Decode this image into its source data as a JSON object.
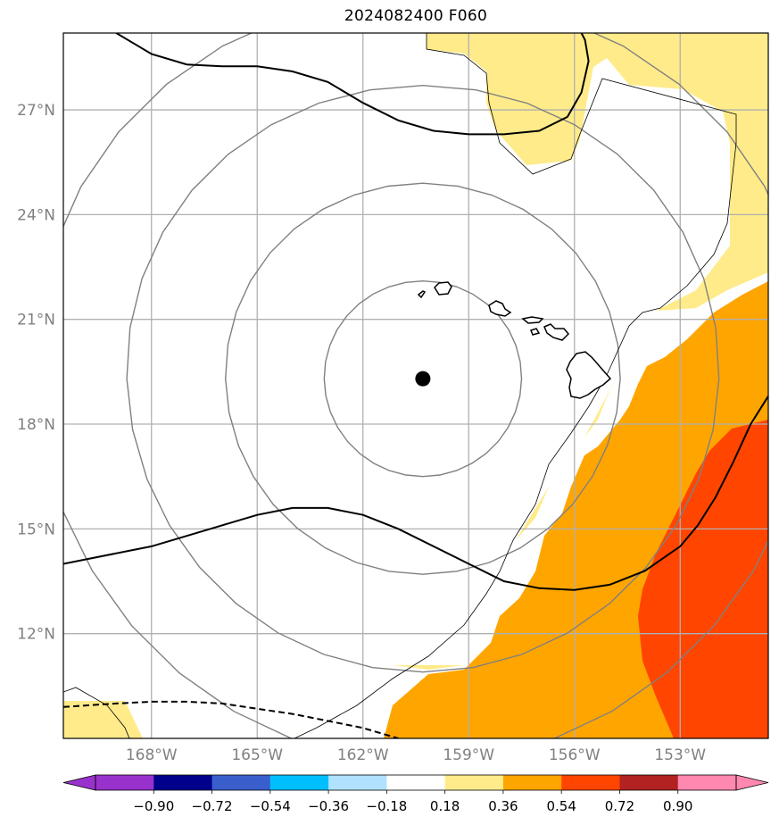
{
  "title": "2024082400 F060",
  "chart_data": {
    "type": "map",
    "projection": "plate carree",
    "xlim": [
      -170.5,
      -150.5
    ],
    "ylim": [
      9.0,
      29.2
    ],
    "lat_ticks": [
      12,
      15,
      18,
      21,
      24,
      27
    ],
    "lon_ticks": [
      -168,
      -165,
      -162,
      -159,
      -156,
      -153
    ],
    "lat_tick_labels": [
      "12°N",
      "15°N",
      "18°N",
      "21°N",
      "24°N",
      "27°N"
    ],
    "lon_tick_labels": [
      "168°W",
      "165°W",
      "162°W",
      "159°W",
      "156°W",
      "153°W"
    ],
    "grid": true,
    "center_marker": {
      "lon": -160.3,
      "lat": 19.3
    },
    "range_rings_deg": [
      2.8,
      5.6,
      8.4,
      11.0
    ],
    "colorbar": {
      "orientation": "horizontal",
      "extend": "both",
      "boundaries": [
        -0.9,
        -0.72,
        -0.54,
        -0.36,
        -0.18,
        0.18,
        0.36,
        0.54,
        0.72,
        0.9
      ],
      "tick_labels": [
        "−0.90",
        "−0.72",
        "−0.54",
        "−0.36",
        "−0.18",
        "0.18",
        "0.36",
        "0.54",
        "0.72",
        "0.90"
      ],
      "colors": [
        "#9932cc",
        "#00008b",
        "#3a5fcd",
        "#00bfff",
        "#b0e2ff",
        "#ffffff",
        "#ffeb8a",
        "#ffa500",
        "#ff4500",
        "#b22222",
        "#ff88b0"
      ]
    },
    "filled_regions": [
      {
        "level": "0.18–0.36",
        "color": "#ffeb8a"
      },
      {
        "level": "0.36–0.54",
        "color": "#ffa500"
      },
      {
        "level": "0.54–0.72",
        "color": "#ff4500"
      }
    ],
    "contours": [
      {
        "style": "solid",
        "points": [
          [
            -170.5,
            14.0
          ],
          [
            -168,
            14.5
          ],
          [
            -166,
            15.1
          ],
          [
            -165,
            15.4
          ],
          [
            -164,
            15.6
          ],
          [
            -163,
            15.6
          ],
          [
            -162,
            15.4
          ],
          [
            -161,
            15.0
          ],
          [
            -160,
            14.5
          ],
          [
            -159,
            14.0
          ],
          [
            -158,
            13.5
          ],
          [
            -157,
            13.3
          ],
          [
            -156,
            13.25
          ],
          [
            -155,
            13.4
          ],
          [
            -154,
            13.8
          ],
          [
            -153,
            14.5
          ],
          [
            -152.5,
            15.1
          ],
          [
            -152,
            15.9
          ],
          [
            -151.5,
            16.9
          ],
          [
            -151,
            18.0
          ],
          [
            -150.5,
            18.8
          ]
        ]
      },
      {
        "style": "solid",
        "points": [
          [
            -169.0,
            29.2
          ],
          [
            -168.5,
            28.9
          ],
          [
            -168,
            28.6
          ],
          [
            -167,
            28.3
          ],
          [
            -166,
            28.25
          ],
          [
            -165,
            28.25
          ],
          [
            -164,
            28.1
          ],
          [
            -163,
            27.8
          ],
          [
            -162,
            27.2
          ],
          [
            -161,
            26.7
          ],
          [
            -160,
            26.4
          ],
          [
            -159,
            26.3
          ],
          [
            -158,
            26.3
          ],
          [
            -157,
            26.4
          ],
          [
            -156.2,
            26.8
          ],
          [
            -155.8,
            27.5
          ],
          [
            -155.6,
            28.4
          ],
          [
            -155.7,
            29.0
          ],
          [
            -155.8,
            29.2
          ]
        ]
      },
      {
        "style": "dashed",
        "points": [
          [
            -170.5,
            9.9
          ],
          [
            -169,
            10.0
          ],
          [
            -168,
            10.05
          ],
          [
            -167,
            10.05
          ],
          [
            -166,
            10.0
          ],
          [
            -165,
            9.85
          ],
          [
            -164,
            9.7
          ],
          [
            -163,
            9.5
          ],
          [
            -162,
            9.3
          ],
          [
            -161,
            9.0
          ]
        ]
      }
    ]
  }
}
